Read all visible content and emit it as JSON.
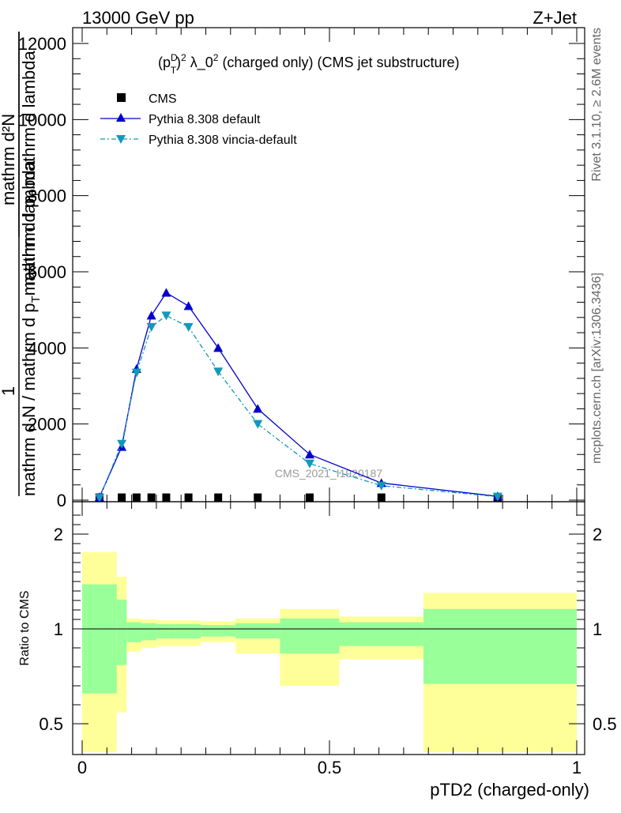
{
  "header": {
    "left": "13000 GeV pp",
    "right": "Z+Jet"
  },
  "side_labels": {
    "rivet": "Rivet 3.1.10, ≥ 2.6M events",
    "mcplots": "mcplots.cern.ch [arXiv:1306.3436]"
  },
  "watermark": "CMS_2021_I1920187",
  "colors": {
    "cms": "#000000",
    "default": "#0000cc",
    "vincia": "#1199bb",
    "band_inner": "#99ff99",
    "band_outer": "#ffff99"
  },
  "chart_data": [
    {
      "type": "line",
      "title_parts": {
        "pre": "(p",
        "sup1": "D",
        "sub1": "T",
        "post1": ")",
        "sup2": "2",
        "mid": " λ_0",
        "sup3": "2",
        "post2": " (charged only) (CMS jet substructure)"
      },
      "ylabel_parts": {
        "num_top": "1",
        "num_bottom": "mathrm d N / mathrm d p",
        "num_sub": "T",
        "num_bottom2": "mathrm d lambda",
        "frac_top": "mathrm d²N",
        "frac_bottom": "mathrm d p",
        "frac_sub": "T",
        "frac_bottom2": " mathrm d lambda"
      },
      "xlim": [
        0,
        1
      ],
      "ylim": [
        0,
        12000
      ],
      "y_ticks": [
        0,
        2000,
        4000,
        6000,
        8000,
        10000,
        12000
      ],
      "y_tick_labels": [
        "0",
        "2000",
        "4000",
        "6000",
        "8000",
        "10000",
        "12000"
      ],
      "legend_placement": "top-left",
      "series": [
        {
          "name": "CMS",
          "marker": "square",
          "x": [
            0.035,
            0.08,
            0.11,
            0.14,
            0.17,
            0.215,
            0.275,
            0.355,
            0.46,
            0.605,
            0.84
          ],
          "y": [
            30,
            30,
            30,
            30,
            30,
            30,
            30,
            30,
            30,
            30,
            30
          ]
        },
        {
          "name": "Pythia 8.308 default",
          "marker": "triangle-up",
          "x": [
            0.035,
            0.08,
            0.11,
            0.14,
            0.17,
            0.215,
            0.275,
            0.355,
            0.46,
            0.605,
            0.84
          ],
          "y": [
            80,
            1400,
            3450,
            4850,
            5450,
            5100,
            4000,
            2400,
            1200,
            450,
            100
          ]
        },
        {
          "name": "Pythia 8.308 vincia-default",
          "marker": "triangle-down",
          "x": [
            0.035,
            0.08,
            0.11,
            0.14,
            0.17,
            0.215,
            0.275,
            0.355,
            0.46,
            0.605,
            0.84
          ],
          "y": [
            60,
            1480,
            3350,
            4550,
            4850,
            4550,
            3380,
            2000,
            960,
            380,
            90
          ]
        }
      ]
    },
    {
      "type": "area",
      "ylabel": "Ratio to CMS",
      "xlabel": "pTD2 (charged-only)",
      "xlim": [
        0,
        1
      ],
      "ylim": [
        0.35,
        2.3
      ],
      "x_ticks": [
        0,
        0.5,
        1
      ],
      "x_tick_labels": [
        "0",
        "0.5",
        "1"
      ],
      "y_ticks": [
        0.5,
        1,
        2
      ],
      "y_tick_labels": [
        "0.5",
        "1",
        "2"
      ],
      "bins": [
        {
          "lo": 0.0,
          "hi": 0.07,
          "inner": [
            0.66,
            1.47
          ],
          "outer": [
            0.35,
            1.81
          ]
        },
        {
          "lo": 0.07,
          "hi": 0.09,
          "inner": [
            0.81,
            1.31
          ],
          "outer": [
            0.56,
            1.55
          ]
        },
        {
          "lo": 0.09,
          "hi": 0.12,
          "inner": [
            0.93,
            1.07
          ],
          "outer": [
            0.88,
            1.11
          ]
        },
        {
          "lo": 0.12,
          "hi": 0.15,
          "inner": [
            0.94,
            1.06
          ],
          "outer": [
            0.9,
            1.1
          ]
        },
        {
          "lo": 0.15,
          "hi": 0.19,
          "inner": [
            0.95,
            1.05
          ],
          "outer": [
            0.91,
            1.09
          ]
        },
        {
          "lo": 0.19,
          "hi": 0.24,
          "inner": [
            0.95,
            1.05
          ],
          "outer": [
            0.91,
            1.09
          ]
        },
        {
          "lo": 0.24,
          "hi": 0.31,
          "inner": [
            0.96,
            1.04
          ],
          "outer": [
            0.93,
            1.08
          ]
        },
        {
          "lo": 0.31,
          "hi": 0.4,
          "inner": [
            0.95,
            1.06
          ],
          "outer": [
            0.87,
            1.11
          ]
        },
        {
          "lo": 0.4,
          "hi": 0.52,
          "inner": [
            0.87,
            1.11
          ],
          "outer": [
            0.7,
            1.21
          ]
        },
        {
          "lo": 0.52,
          "hi": 0.69,
          "inner": [
            0.91,
            1.07
          ],
          "outer": [
            0.84,
            1.13
          ]
        },
        {
          "lo": 0.69,
          "hi": 1.0,
          "inner": [
            0.71,
            1.21
          ],
          "outer": [
            0.35,
            1.38
          ]
        }
      ]
    }
  ]
}
